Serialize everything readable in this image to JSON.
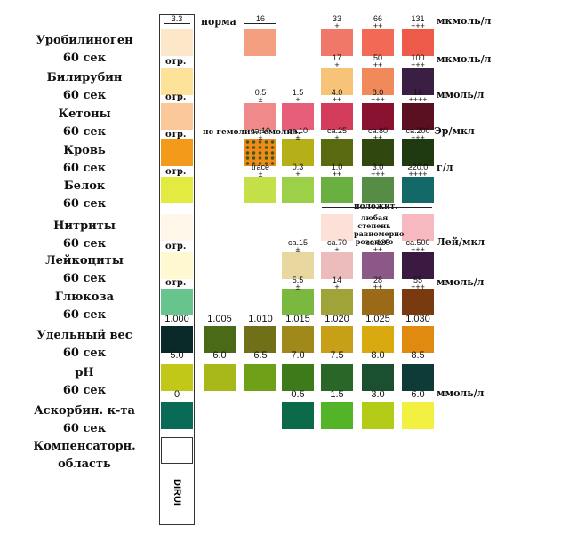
{
  "rows": [
    {
      "key": "urobilinogen",
      "name": "Уробилиноген",
      "time": "60 сек"
    },
    {
      "key": "bilirubin",
      "name": "Билирубин",
      "time": "60 сек"
    },
    {
      "key": "ketones",
      "name": "Кетоны",
      "time": "60 сек"
    },
    {
      "key": "blood",
      "name": "Кровь",
      "time": "60 сек"
    },
    {
      "key": "protein",
      "name": "Белок",
      "time": "60 сек"
    },
    {
      "key": "nitrites",
      "name": "Нитриты",
      "time": "60 сек"
    },
    {
      "key": "leukocytes",
      "name": "Лейкоциты",
      "time": "60 сек"
    },
    {
      "key": "glucose",
      "name": "Глюкоза",
      "time": "60 сек"
    },
    {
      "key": "sg",
      "name": "Удельный вес",
      "time": "60 сек"
    },
    {
      "key": "ph",
      "name": "pH",
      "time": "60 сек"
    },
    {
      "key": "ascorbic",
      "name": "Аскорбин. к-та",
      "time": "60 сек"
    },
    {
      "key": "comp",
      "name": "Компенсаторн.",
      "time": "область"
    }
  ],
  "labels": {
    "strip_value": "3.3",
    "norma": "норма",
    "otr": "отр.",
    "brand": "DIRUI",
    "ne_gemoliz": "не гемолиз.",
    "gemoliz": "гемолиз.",
    "polozhit": "положит.",
    "lyubaya": "любая степень равномерно розового"
  },
  "units": {
    "mkmol1": "мкмоль/л",
    "mkmol2": "мкмоль/л",
    "mmol_ket": "ммоль/л",
    "er_mkl": "Эр/мкл",
    "g_l": "г/л",
    "lei_mkl": "Лей/мкл",
    "mmol_glu": "ммоль/л",
    "mmol_asc": "ммоль/л"
  },
  "values": {
    "uro": [
      "16",
      "33",
      "66",
      "131"
    ],
    "uro_sym": [
      "+",
      "++",
      "+++"
    ],
    "bil": [
      "17",
      "50",
      "100"
    ],
    "bil_sym": [
      "+",
      "++",
      "+++"
    ],
    "ket": [
      "0.5",
      "1.5",
      "4.0",
      "8.0",
      "16"
    ],
    "ket_sym": [
      "±",
      "+",
      "++",
      "+++",
      "++++"
    ],
    "bld": [
      "ca.10",
      "ca.10",
      "ca.25",
      "ca.80",
      "ca.200"
    ],
    "bld_sym": [
      "±",
      "±",
      "+",
      "++",
      "+++"
    ],
    "prt": [
      "trace",
      "0.3",
      "1.0",
      "3.0",
      "≥20.0"
    ],
    "prt_sym": [
      "±",
      "+",
      "++",
      "+++",
      "++++"
    ],
    "leu": [
      "ca.15",
      "ca.70",
      "ca.125",
      "ca.500"
    ],
    "leu_sym": [
      "±",
      "+",
      "++",
      "+++"
    ],
    "glu": [
      "5.5",
      "14",
      "28",
      "55"
    ],
    "glu_sym": [
      "±",
      "+",
      "++",
      "+++"
    ],
    "sg": [
      "1.000",
      "1.005",
      "1.010",
      "1.015",
      "1.020",
      "1.025",
      "1.030"
    ],
    "ph": [
      "5.0",
      "6.0",
      "6.5",
      "7.0",
      "7.5",
      "8.0",
      "8.5"
    ],
    "asc": [
      "0",
      "0.5",
      "1.5",
      "3.0",
      "6.0"
    ]
  },
  "colors": {
    "uro": [
      "#fce8c8",
      "#f4a080",
      "#f07868",
      "#f26a55",
      "#ee5a4a"
    ],
    "bil": [
      "#fde29a",
      "#f7c378",
      "#f08a5a",
      "#3b1e44"
    ],
    "ket": [
      "#fbc89a",
      "#f08a8a",
      "#e75e7a",
      "#d33c5a",
      "#8a1230",
      "#5a1020"
    ],
    "bld": [
      "#f49a1a",
      "#f08a1a",
      "#e0c818",
      "#b5b018",
      "#5a6a10",
      "#304810",
      "#1f3a10"
    ],
    "prt": [
      "#e3ea40",
      "#c4e048",
      "#9bd048",
      "#6ab040",
      "#568c46",
      "#136868"
    ],
    "nit": [
      "#fff8ea",
      "#fde0d8",
      "#f8b8c0"
    ],
    "leu": [
      "#fff8d0",
      "#e8d8a0",
      "#ecbcbc",
      "#8c5888",
      "#3a1a40"
    ],
    "glu": [
      "#66c48c",
      "#7ab840",
      "#a0a438",
      "#9a6a18",
      "#7a3a10"
    ],
    "sg": [
      "#0a2a2a",
      "#4a6a18",
      "#707018",
      "#a0881a",
      "#c8a018",
      "#d8aa10",
      "#e08a10"
    ],
    "ph": [
      "#c2c818",
      "#a8b818",
      "#6ea018",
      "#3c7a1a",
      "#2a6628",
      "#1a5030",
      "#0e3a38"
    ],
    "asc": [
      "#0a6a58",
      "#0a6a4a",
      "#54b428",
      "#b4cc18",
      "#f2f040"
    ],
    "comp": "#ffffff"
  }
}
